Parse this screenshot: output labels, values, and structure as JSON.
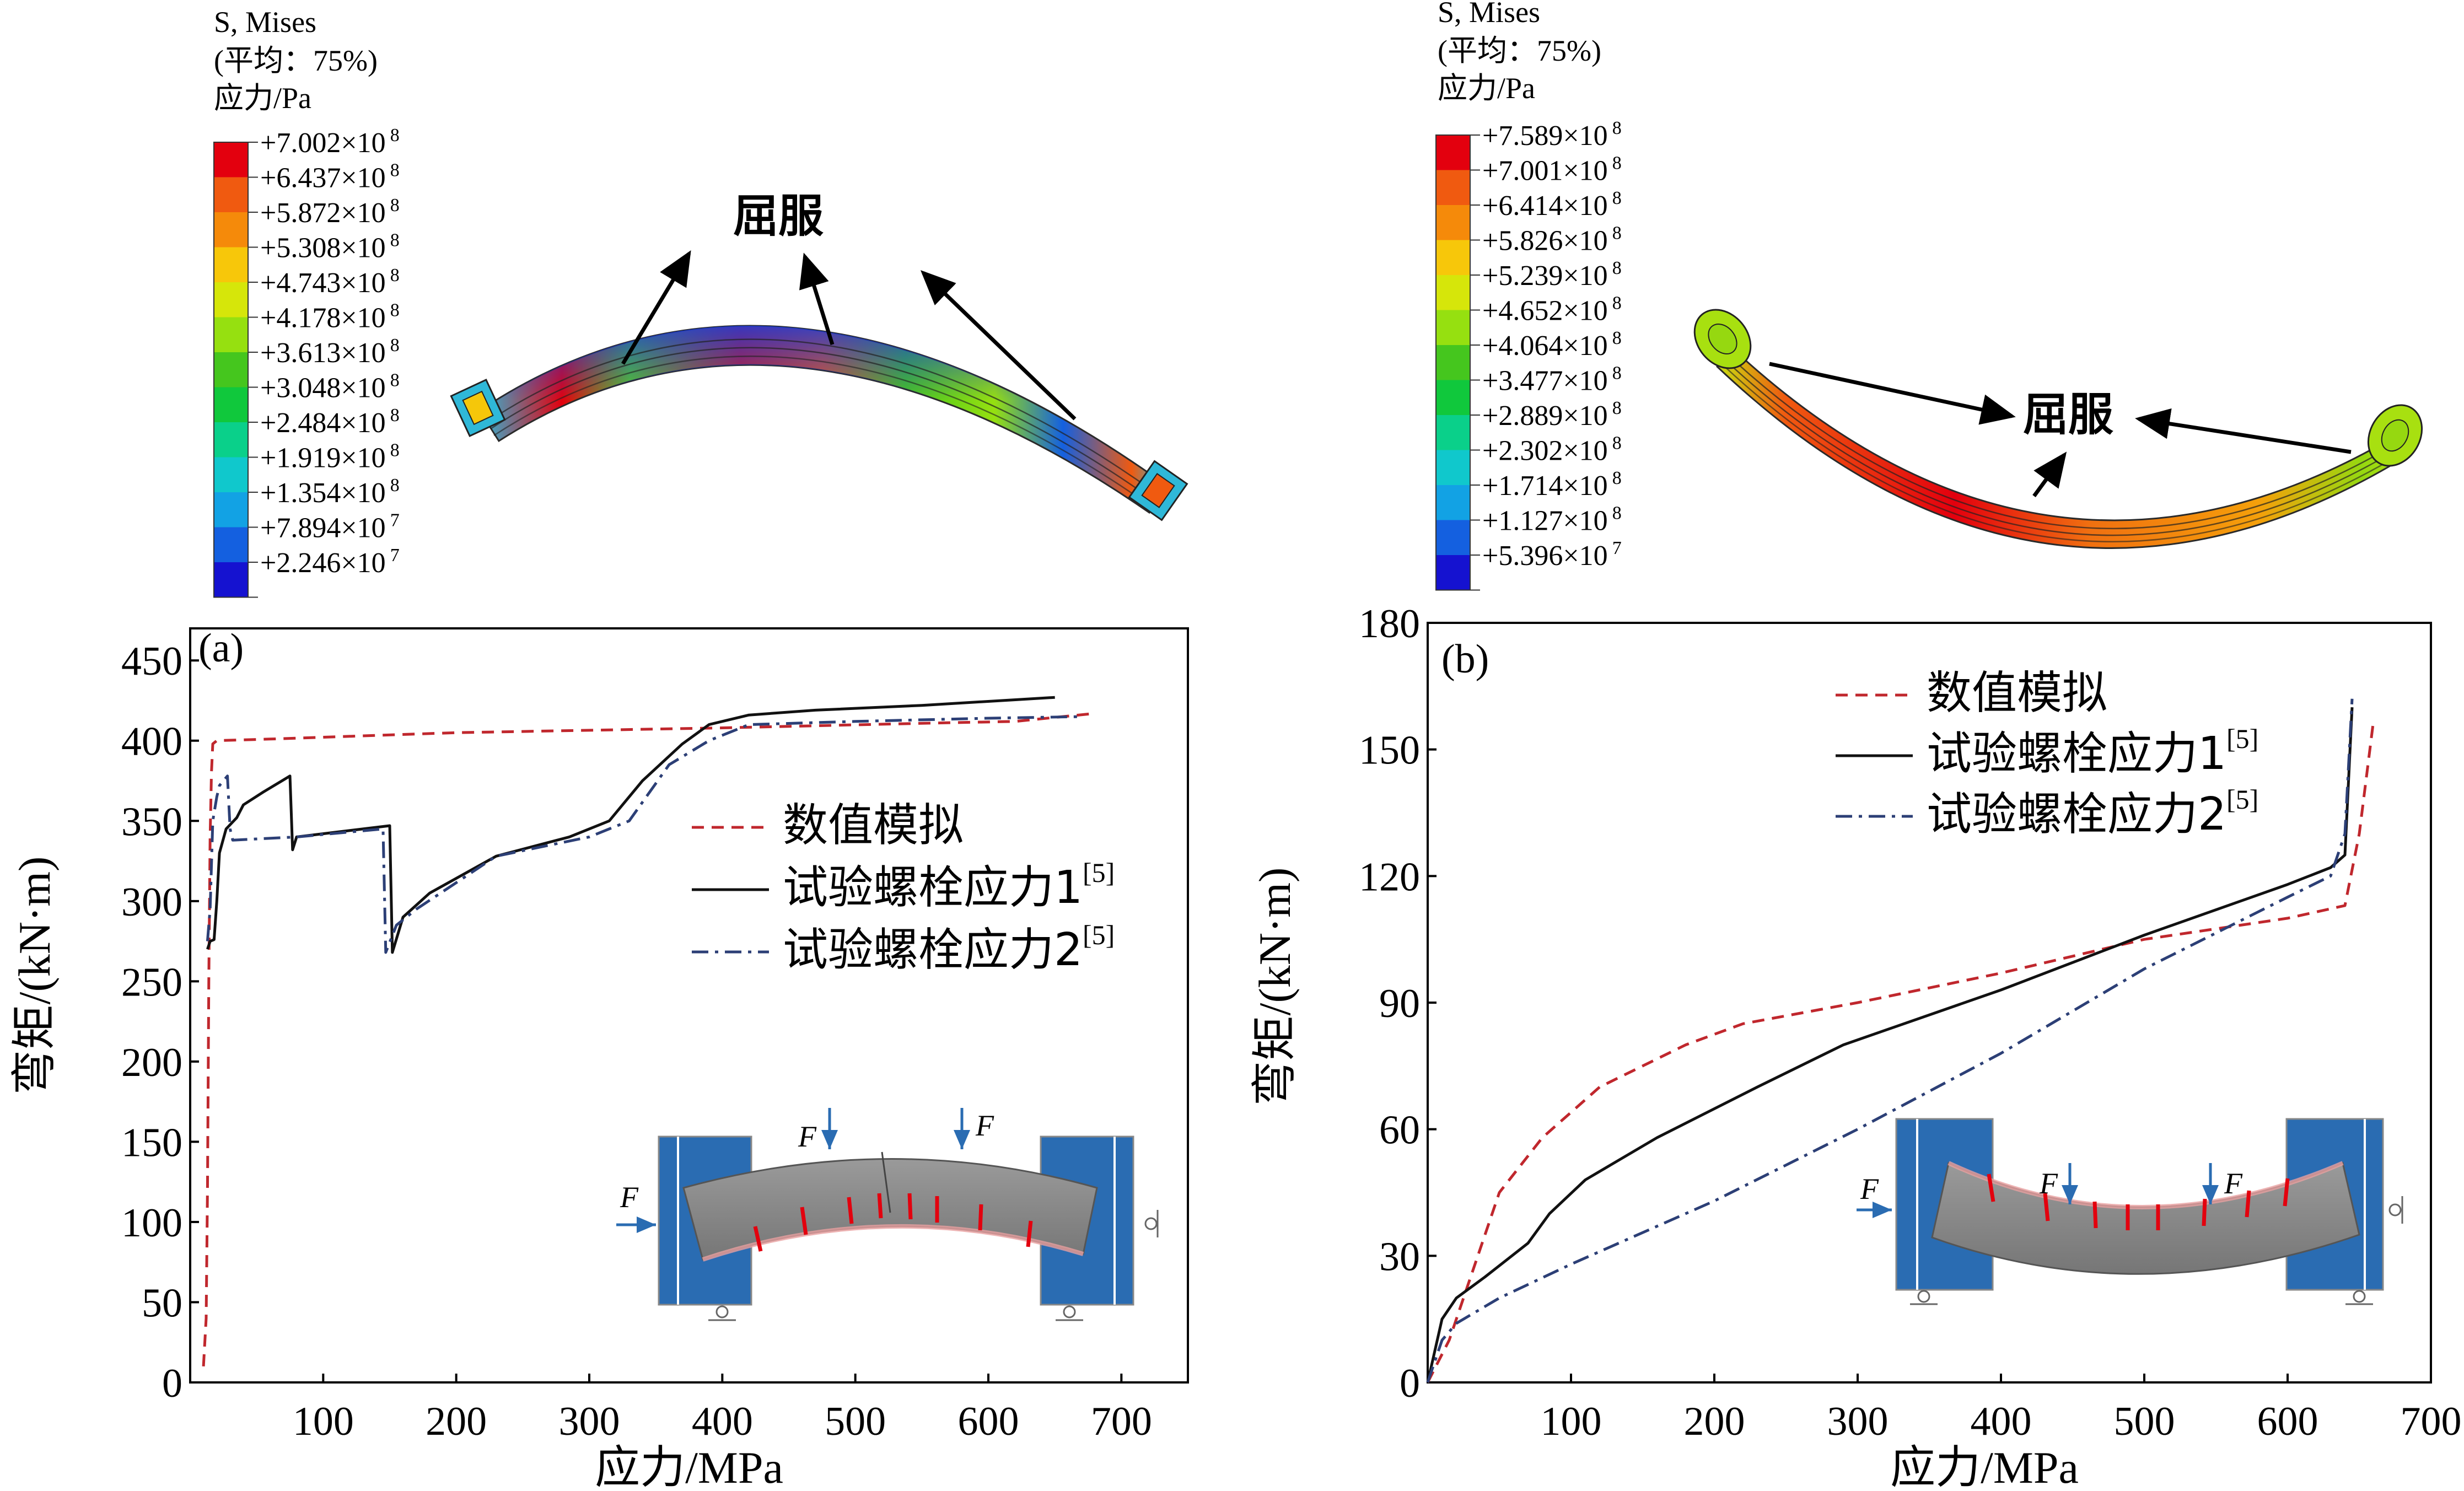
{
  "chart_data": [
    {
      "panel": "(a)",
      "type": "line",
      "xlabel": "应力/MPa",
      "ylabel": "弯矩/(kN·m)",
      "xlim": [
        0,
        750
      ],
      "ylim": [
        0,
        470
      ],
      "xticks": [
        100,
        200,
        300,
        400,
        500,
        600,
        700
      ],
      "yticks": [
        0,
        50,
        100,
        150,
        200,
        250,
        300,
        350,
        400,
        450
      ],
      "legend_position": "right-middle",
      "series": [
        {
          "name": "数值模拟",
          "color": "#c0272d",
          "style": "dashed",
          "points": [
            [
              10,
              10
            ],
            [
              12,
              40
            ],
            [
              13,
              120
            ],
            [
              14,
              250
            ],
            [
              15,
              340
            ],
            [
              16,
              380
            ],
            [
              17,
              398
            ],
            [
              20,
              400
            ],
            [
              60,
              401
            ],
            [
              200,
              405
            ],
            [
              400,
              408
            ],
            [
              560,
              411
            ],
            [
              620,
              412
            ],
            [
              680,
              417
            ]
          ]
        },
        {
          "name": "试验螺栓应力1",
          "sup": "[5]",
          "color": "#111111",
          "style": "solid",
          "points": [
            [
              13,
              270
            ],
            [
              15,
              275
            ],
            [
              18,
              276
            ],
            [
              20,
              300
            ],
            [
              22,
              330
            ],
            [
              27,
              345
            ],
            [
              35,
              352
            ],
            [
              40,
              360
            ],
            [
              55,
              368
            ],
            [
              75,
              378
            ],
            [
              77,
              332
            ],
            [
              80,
              340
            ],
            [
              150,
              347
            ],
            [
              152,
              268
            ],
            [
              160,
              290
            ],
            [
              180,
              305
            ],
            [
              230,
              328
            ],
            [
              285,
              340
            ],
            [
              315,
              350
            ],
            [
              340,
              375
            ],
            [
              370,
              398
            ],
            [
              390,
              410
            ],
            [
              420,
              416
            ],
            [
              470,
              419
            ],
            [
              550,
              422
            ],
            [
              650,
              427
            ]
          ]
        },
        {
          "name": "试验螺栓应力2",
          "sup": "[5]",
          "color": "#2c3f76",
          "style": "dashdot",
          "points": [
            [
              13,
              275
            ],
            [
              15,
              295
            ],
            [
              17,
              350
            ],
            [
              20,
              365
            ],
            [
              22,
              372
            ],
            [
              25,
              375
            ],
            [
              28,
              378
            ],
            [
              30,
              345
            ],
            [
              32,
              338
            ],
            [
              80,
              340
            ],
            [
              145,
              345
            ],
            [
              147,
              268
            ],
            [
              155,
              285
            ],
            [
              170,
              295
            ],
            [
              230,
              328
            ],
            [
              300,
              340
            ],
            [
              330,
              350
            ],
            [
              360,
              385
            ],
            [
              390,
              400
            ],
            [
              420,
              410
            ],
            [
              500,
              412
            ],
            [
              600,
              414
            ],
            [
              670,
              415
            ]
          ]
        }
      ]
    },
    {
      "panel": "(b)",
      "type": "line",
      "xlabel": "应力/MPa",
      "ylabel": "弯矩/(kN·m)",
      "xlim": [
        0,
        700
      ],
      "ylim": [
        0,
        180
      ],
      "xticks": [
        100,
        200,
        300,
        400,
        500,
        600,
        700
      ],
      "yticks": [
        0,
        30,
        60,
        90,
        120,
        150,
        180
      ],
      "legend_position": "top-middle",
      "series": [
        {
          "name": "数值模拟",
          "color": "#c0272d",
          "style": "dashed",
          "points": [
            [
              0,
              0
            ],
            [
              15,
              10
            ],
            [
              30,
              25
            ],
            [
              50,
              45
            ],
            [
              80,
              58
            ],
            [
              120,
              70
            ],
            [
              180,
              80
            ],
            [
              220,
              85
            ],
            [
              300,
              90
            ],
            [
              400,
              97
            ],
            [
              500,
              105
            ],
            [
              560,
              108
            ],
            [
              600,
              110
            ],
            [
              640,
              113
            ],
            [
              650,
              130
            ],
            [
              660,
              157
            ]
          ]
        },
        {
          "name": "试验螺栓应力1",
          "sup": "[5]",
          "color": "#111111",
          "style": "solid",
          "points": [
            [
              0,
              0
            ],
            [
              10,
              15
            ],
            [
              20,
              20
            ],
            [
              40,
              25
            ],
            [
              70,
              33
            ],
            [
              85,
              40
            ],
            [
              110,
              48
            ],
            [
              160,
              58
            ],
            [
              230,
              70
            ],
            [
              290,
              80
            ],
            [
              400,
              93
            ],
            [
              500,
              106
            ],
            [
              600,
              118
            ],
            [
              630,
              122
            ],
            [
              640,
              125
            ],
            [
              645,
              160
            ]
          ]
        },
        {
          "name": "试验螺栓应力2",
          "sup": "[5]",
          "color": "#2c3f76",
          "style": "dashdot",
          "points": [
            [
              0,
              0
            ],
            [
              10,
              10
            ],
            [
              20,
              14
            ],
            [
              50,
              20
            ],
            [
              100,
              28
            ],
            [
              200,
              43
            ],
            [
              300,
              60
            ],
            [
              400,
              78
            ],
            [
              500,
              98
            ],
            [
              600,
              115
            ],
            [
              630,
              120
            ],
            [
              640,
              130
            ],
            [
              645,
              162
            ]
          ]
        }
      ]
    }
  ],
  "colorbars": [
    {
      "title_line1": "S, Mises",
      "title_line2": "(平均：75%)",
      "title_line3": "应力/Pa",
      "levels": [
        "+7.002×10",
        "+6.437×10",
        "+5.872×10",
        "+5.308×10",
        "+4.743×10",
        "+4.178×10",
        "+3.613×10",
        "+3.048×10",
        "+2.484×10",
        "+1.919×10",
        "+1.354×10",
        "+7.894×10",
        "+2.246×10"
      ],
      "exponents": [
        "8",
        "8",
        "8",
        "8",
        "8",
        "8",
        "8",
        "8",
        "8",
        "8",
        "8",
        "7",
        "7"
      ]
    },
    {
      "title_line1": "S, Mises",
      "title_line2": "(平均：75%)",
      "title_line3": "应力/Pa",
      "levels": [
        "+7.589×10",
        "+7.001×10",
        "+6.414×10",
        "+5.826×10",
        "+5.239×10",
        "+4.652×10",
        "+4.064×10",
        "+3.477×10",
        "+2.889×10",
        "+2.302×10",
        "+1.714×10",
        "+1.127×10",
        "+5.396×10"
      ],
      "exponents": [
        "8",
        "8",
        "8",
        "8",
        "8",
        "8",
        "8",
        "8",
        "8",
        "8",
        "8",
        "8",
        "7"
      ]
    }
  ],
  "colors": {
    "cmap": [
      "#e3000e",
      "#f05a10",
      "#f58a0a",
      "#f7c70a",
      "#d6e60a",
      "#96e010",
      "#45c61e",
      "#10c83c",
      "#0ad08a",
      "#10c8cc",
      "#12a2e4",
      "#1460e0",
      "#1512d0"
    ],
    "steel_blue": "#2a6cb2",
    "beam_gray": "#8a8a8a"
  },
  "annotations": {
    "yield_label": "屈服",
    "force_label": "F"
  }
}
